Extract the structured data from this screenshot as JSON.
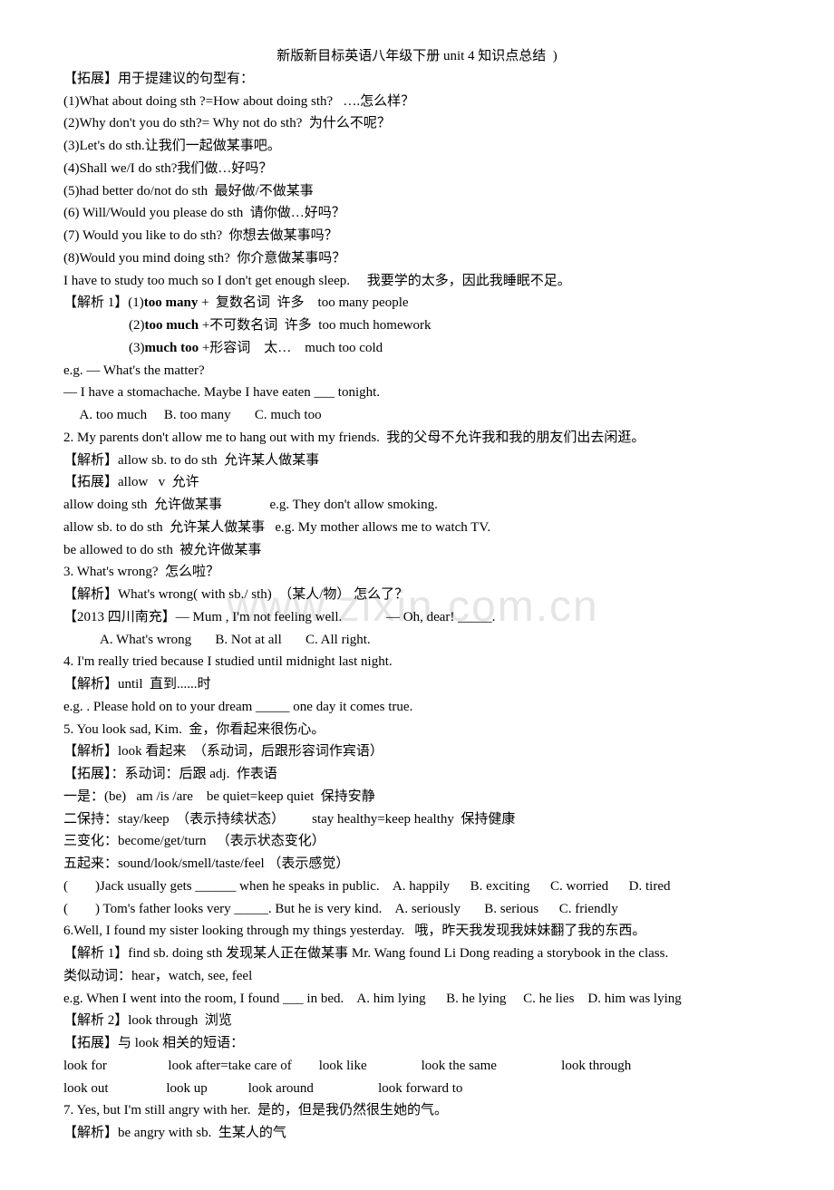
{
  "title": "新版新目标英语八年级下册 unit 4 知识点总结  )",
  "watermark": "www.zixin.com.cn",
  "lines": [
    {
      "t": "【拓展】用于提建议的句型有："
    },
    {
      "t": "(1)What about doing sth ?=How about doing sth?   ….怎么样？"
    },
    {
      "t": "(2)Why don't you do sth?= Why not do sth?  为什么不呢？"
    },
    {
      "t": "(3)Let's do sth.让我们一起做某事吧。"
    },
    {
      "t": "(4)Shall we/I do sth?我们做…好吗？"
    },
    {
      "t": "(5)had better do/not do sth  最好做/不做某事"
    },
    {
      "t": "(6) Will/Would you please do sth  请你做…好吗？"
    },
    {
      "t": "(7) Would you like to do sth?  你想去做某事吗？"
    },
    {
      "t": "(8)Would you mind doing sth?  你介意做某事吗？"
    },
    {
      "t": "I have to study too much so I don't get enough sleep.     我要学的太多，因此我睡眠不足。"
    },
    {
      "html": "【解析 1】(1)<b>too many</b> +  复数名词  许多    too many people"
    },
    {
      "html": "(2)<b>too much</b> +不可数名词  许多  too much homework",
      "cls": "indent1"
    },
    {
      "html": "(3)<b>much too</b> +形容词    太…    much too cold",
      "cls": "indent1"
    },
    {
      "t": "e.g. — What's the matter?"
    },
    {
      "t": "— I have a stomachache. Maybe I have eaten ___ tonight."
    },
    {
      "t": "  A. too much     B. too many       C. much too",
      "cls": "indent-small"
    },
    {
      "t": "2. My parents don't allow me to hang out with my friends.  我的父母不允许我和我的朋友们出去闲逛。"
    },
    {
      "t": "【解析】allow sb. to do sth  允许某人做某事"
    },
    {
      "t": "【拓展】allow   v  允许"
    },
    {
      "t": "allow doing sth  允许做某事              e.g. They don't allow smoking."
    },
    {
      "t": "allow sb. to do sth  允许某人做某事   e.g. My mother allows me to watch TV."
    },
    {
      "t": "be allowed to do sth  被允许做某事"
    },
    {
      "t": "3. What's wrong?  怎么啦？"
    },
    {
      "t": "【解析】What's wrong( with sb./ sth)  （某人/物） 怎么了？"
    },
    {
      "t": "【2013 四川南充】— Mum , I'm not feeling well.             — Oh, dear! _____."
    },
    {
      "t": "A. What's wrong       B. Not at all       C. All right.",
      "cls": "indent-opt"
    },
    {
      "t": "4. I'm really tried because I studied until midnight last night."
    },
    {
      "t": "【解析】until  直到......时"
    },
    {
      "t": "e.g. . Please hold on to your dream _____ one day it comes true."
    },
    {
      "t": "5. You look sad, Kim.  金，你看起来很伤心。"
    },
    {
      "t": "【解析】look 看起来  （系动词，后跟形容词作宾语）"
    },
    {
      "t": "【拓展】：系动词：后跟 adj.  作表语"
    },
    {
      "t": "一是：(be)   am /is /are    be quiet=keep quiet  保持安静"
    },
    {
      "t": "二保持：stay/keep  （表示持续状态）        stay healthy=keep healthy  保持健康"
    },
    {
      "t": "三变化：become/get/turn   （表示状态变化）"
    },
    {
      "t": "五起来：sound/look/smell/taste/feel （表示感觉）"
    },
    {
      "t": "(        )Jack usually gets ______ when he speaks in public.    A. happily      B. exciting      C. worried      D. tired"
    },
    {
      "t": "(        ) Tom's father looks very _____. But he is very kind.    A. seriously       B. serious      C. friendly"
    },
    {
      "t": "6.Well, I found my sister looking through my things yesterday.   哦，昨天我发现我妹妹翻了我的东西。"
    },
    {
      "t": "【解析 1】find sb. doing sth 发现某人正在做某事 Mr. Wang found Li Dong reading a storybook in the class."
    },
    {
      "t": "类似动词：hear，watch, see, feel"
    },
    {
      "t": "e.g. When I went into the room, I found ___ in bed.    A. him lying      B. he lying     C. he lies    D. him was lying"
    },
    {
      "t": "【解析 2】look through  浏览"
    },
    {
      "t": "【拓展】与 look 相关的短语："
    },
    {
      "t": "look for                  look after=take care of        look like                look the same                   look through"
    },
    {
      "t": "look out                 look up            look around                   look forward to"
    },
    {
      "t": "7. Yes, but I'm still angry with her.  是的，但是我仍然很生她的气。"
    },
    {
      "t": "【解析】be angry with sb.  生某人的气"
    }
  ]
}
